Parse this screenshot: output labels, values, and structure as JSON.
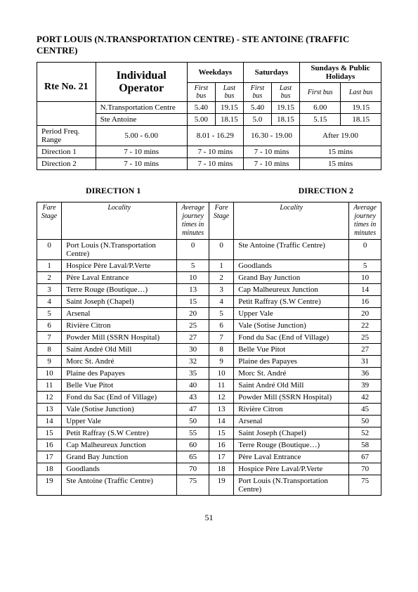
{
  "page_number": "51",
  "title": "PORT LOUIS (N.TRANSPORTATION CENTRE) - STE ANTOINE (TRAFFIC CENTRE)",
  "top": {
    "route_label": "Rte No. 21",
    "operator_label": "Individual Operator",
    "weekday_label": "Weekdays",
    "saturday_label": "Saturdays",
    "sunday_label": "Sundays & Public Holidays",
    "firstbus_label": "First bus",
    "lastbus_label": "Last bus",
    "stops": [
      {
        "name": "N.Transportation Centre",
        "wd_first": "5.40",
        "wd_last": "19.15",
        "sat_first": "5.40",
        "sat_last": "19.15",
        "sun_first": "6.00",
        "sun_last": "19.15"
      },
      {
        "name": "Ste Antoine",
        "wd_first": "5.00",
        "wd_last": "18.15",
        "sat_first": "5.0",
        "sat_last": "18.15",
        "sun_first": "5.15",
        "sun_last": "18.15"
      }
    ],
    "rows": [
      {
        "label": "Period Freq. Range",
        "c1": "5.00 - 6.00",
        "c2": "8.01 - 16.29",
        "c3": "16.30 - 19.00",
        "c4": "After 19.00"
      },
      {
        "label": "Direction 1",
        "c1": "7 - 10 mins",
        "c2": "7 - 10 mins",
        "c3": "7 - 10 mins",
        "c4": "15 mins"
      },
      {
        "label": "Direction 2",
        "c1": "7 - 10 mins",
        "c2": "7 - 10 mins",
        "c3": "7 - 10 mins",
        "c4": "15 mins"
      }
    ]
  },
  "dir1_label": "DIRECTION  1",
  "dir2_label": "DIRECTION  2",
  "route_headers": {
    "stage": "Fare Stage",
    "locality": "Locality",
    "time": "Average journey times in minutes"
  },
  "route": [
    {
      "s1": "0",
      "l1": "Port Louis (N.Transportation Centre)",
      "t1": "0",
      "s2": "0",
      "l2": "Ste Antoine (Traffic Centre)",
      "t2": "0"
    },
    {
      "s1": "1",
      "l1": "Hospice Père Laval/P.Verte",
      "t1": "5",
      "s2": "1",
      "l2": "Goodlands",
      "t2": "5"
    },
    {
      "s1": "2",
      "l1": "Père Laval Entrance",
      "t1": "10",
      "s2": "2",
      "l2": "Grand Bay Junction",
      "t2": "10"
    },
    {
      "s1": "3",
      "l1": "Terre Rouge (Boutique…)",
      "t1": "13",
      "s2": "3",
      "l2": "Cap Malheureux Junction",
      "t2": "14"
    },
    {
      "s1": "4",
      "l1": "Saint Joseph (Chapel)",
      "t1": "15",
      "s2": "4",
      "l2": "Petit Raffray (S.W Centre)",
      "t2": "16"
    },
    {
      "s1": "5",
      "l1": "Arsenal",
      "t1": "20",
      "s2": "5",
      "l2": "Upper Vale",
      "t2": "20"
    },
    {
      "s1": "6",
      "l1": "Rivière Citron",
      "t1": "25",
      "s2": "6",
      "l2": "Vale (Sotise Junction)",
      "t2": "22"
    },
    {
      "s1": "7",
      "l1": "Powder Mill (SSRN Hospital)",
      "t1": "27",
      "s2": "7",
      "l2": "Fond du Sac (End of Village)",
      "t2": "25"
    },
    {
      "s1": "8",
      "l1": "Saint André Old Mill",
      "t1": "30",
      "s2": "8",
      "l2": "Belle Vue Pitot",
      "t2": "27"
    },
    {
      "s1": "9",
      "l1": "Morc St. André",
      "t1": "32",
      "s2": "9",
      "l2": "Plaine des Papayes",
      "t2": "31"
    },
    {
      "s1": "10",
      "l1": "Plaine des Papayes",
      "t1": "35",
      "s2": "10",
      "l2": "Morc St. André",
      "t2": "36"
    },
    {
      "s1": "11",
      "l1": "Belle Vue Pitot",
      "t1": "40",
      "s2": "11",
      "l2": "Saint André Old Mill",
      "t2": "39"
    },
    {
      "s1": "12",
      "l1": "Fond du Sac (End of Village)",
      "t1": "43",
      "s2": "12",
      "l2": "Powder Mill (SSRN Hospital)",
      "t2": "42"
    },
    {
      "s1": "13",
      "l1": "Vale (Sotise Junction)",
      "t1": "47",
      "s2": "13",
      "l2": "Rivière Citron",
      "t2": "45"
    },
    {
      "s1": "14",
      "l1": "Upper Vale",
      "t1": "50",
      "s2": "14",
      "l2": "Arsenal",
      "t2": "50"
    },
    {
      "s1": "15",
      "l1": "Petit Raffray (S.W Centre)",
      "t1": "55",
      "s2": "15",
      "l2": "Saint Joseph (Chapel)",
      "t2": "52"
    },
    {
      "s1": "16",
      "l1": "Cap Malheureux Junction",
      "t1": "60",
      "s2": "16",
      "l2": "Terre Rouge (Boutique…)",
      "t2": "58"
    },
    {
      "s1": "17",
      "l1": "Grand Bay Junction",
      "t1": "65",
      "s2": "17",
      "l2": "Père Laval Entrance",
      "t2": "67"
    },
    {
      "s1": "18",
      "l1": "Goodlands",
      "t1": "70",
      "s2": "18",
      "l2": "Hospice Père Laval/P.Verte",
      "t2": "70"
    },
    {
      "s1": "19",
      "l1": "Ste Antoine (Traffic Centre)",
      "t1": "75",
      "s2": "19",
      "l2": "Port Louis (N.Transportation Centre)",
      "t2": "75"
    }
  ]
}
